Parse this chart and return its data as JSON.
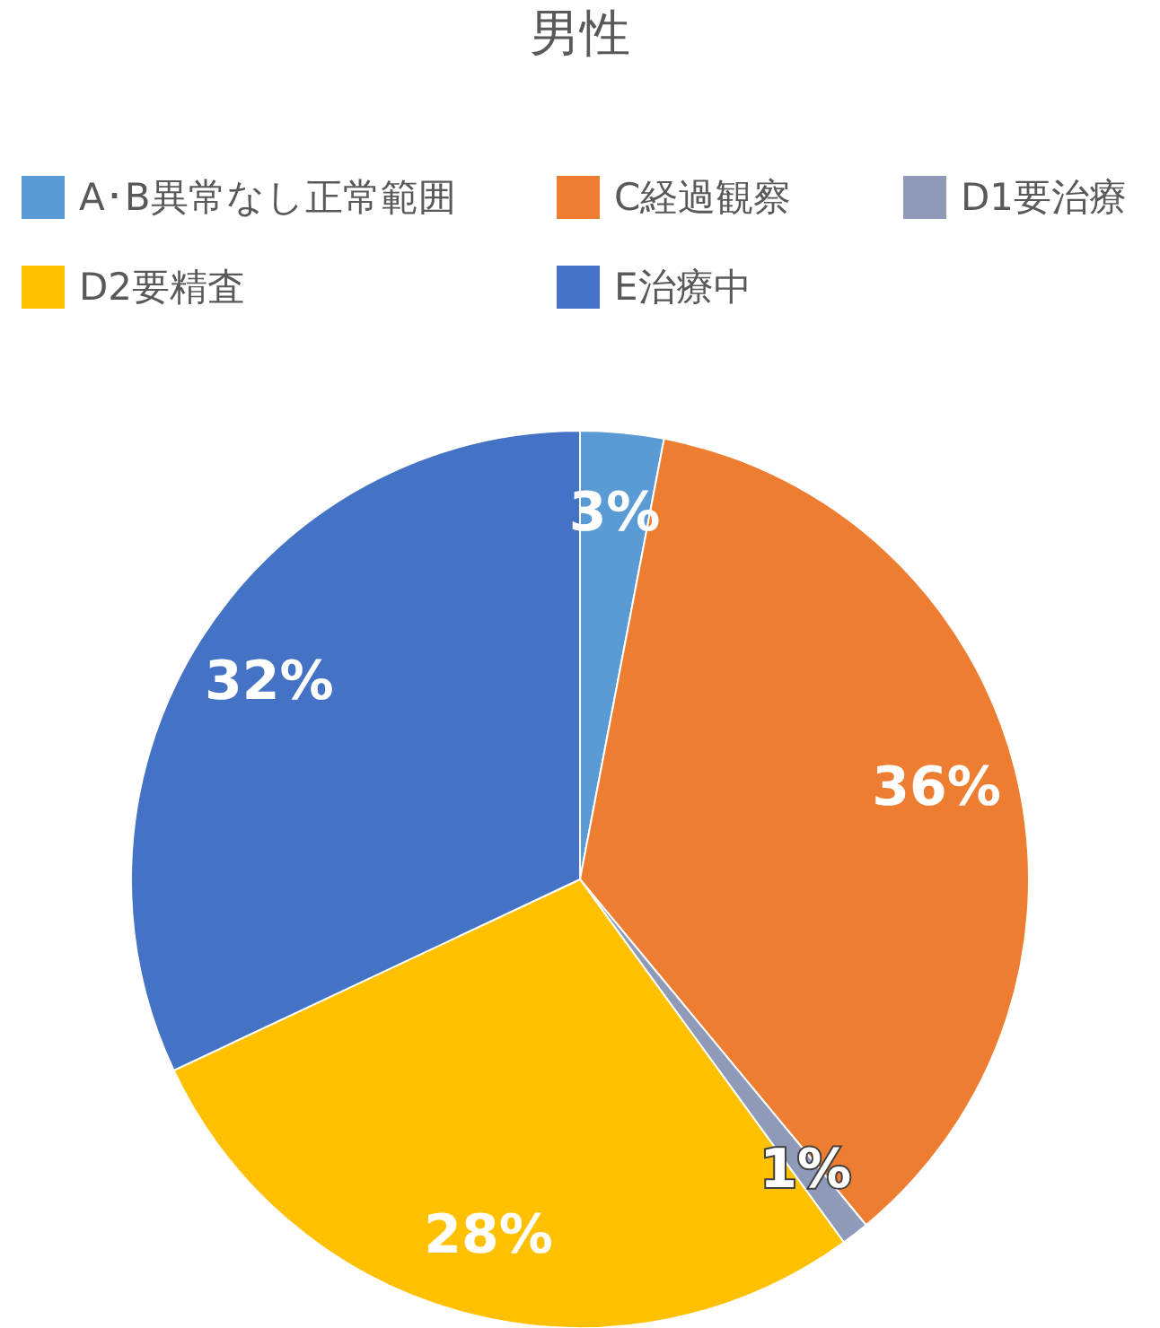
{
  "chart_data": {
    "type": "pie",
    "title": "男性",
    "categories": [
      "A･B異常なし正常範囲",
      "C経過観察",
      "D1要治療",
      "D2要精査",
      "E治療中"
    ],
    "values": [
      3,
      36,
      1,
      28,
      32
    ],
    "colors": [
      "#5b9bd5",
      "#ed7d31",
      "#8e9ab8",
      "#ffc000",
      "#4472c4"
    ],
    "value_labels": [
      "3%",
      "36%",
      "1%",
      "28%",
      "32%"
    ],
    "legend": "top"
  }
}
